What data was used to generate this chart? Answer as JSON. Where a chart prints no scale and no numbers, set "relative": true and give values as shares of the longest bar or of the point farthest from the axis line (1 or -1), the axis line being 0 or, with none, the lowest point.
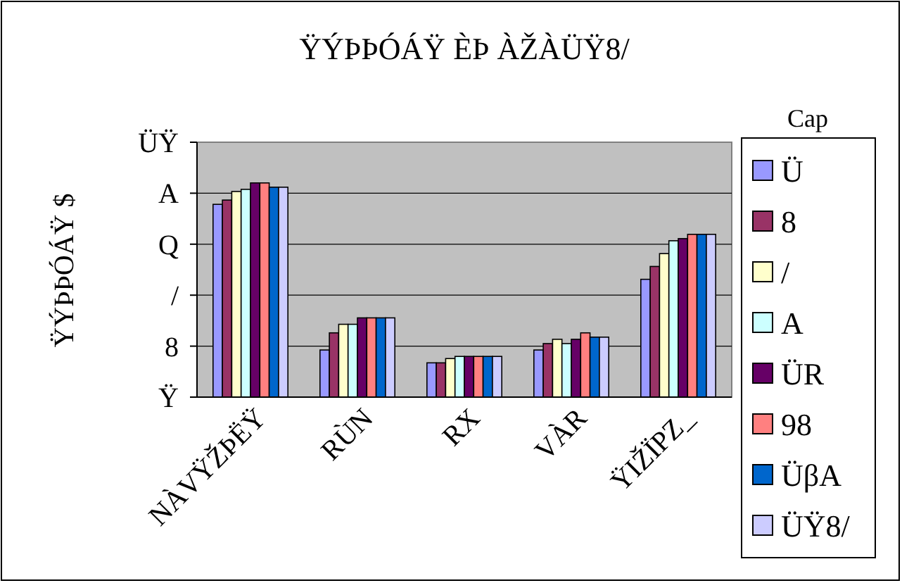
{
  "chart_data": {
    "type": "bar",
    "title": "ŸÝÞÞÓÁŸ ÈÞ ÀŽÀÜŸ8/",
    "ylabel": "ŸÝÞÞÓÁŸ $",
    "legend_title": "Cap",
    "categories": [
      "NÀVŸŽÞËŸ",
      "RÙN",
      "RX",
      "VÀR",
      "ŸIŽÏPZ_"
    ],
    "relative": true,
    "annotations": [
      "Ÿ",
      "8",
      "/",
      "Q",
      "A",
      "ÜŸ"
    ],
    "legend": "right",
    "grid": "y",
    "series": [
      {
        "name": "Ü",
        "color": "#9999ff",
        "values": [
          0.9,
          0.22,
          0.16,
          0.22,
          0.55
        ]
      },
      {
        "name": "8",
        "color": "#993366",
        "values": [
          0.92,
          0.3,
          0.16,
          0.25,
          0.61
        ]
      },
      {
        "name": "/",
        "color": "#ffffcc",
        "values": [
          0.96,
          0.34,
          0.18,
          0.27,
          0.67
        ]
      },
      {
        "name": "A",
        "color": "#ccffff",
        "values": [
          0.97,
          0.34,
          0.19,
          0.25,
          0.73
        ]
      },
      {
        "name": "ÜR",
        "color": "#660066",
        "values": [
          1,
          0.37,
          0.19,
          0.27,
          0.74
        ]
      },
      {
        "name": "98",
        "color": "#ff8080",
        "values": [
          1,
          0.37,
          0.19,
          0.3,
          0.76
        ]
      },
      {
        "name": "ÜβA",
        "color": "#0066cc",
        "values": [
          0.98,
          0.37,
          0.19,
          0.28,
          0.76
        ]
      },
      {
        "name": "ÜŸ8/",
        "color": "#ccccff",
        "values": [
          0.98,
          0.37,
          0.19,
          0.28,
          0.76
        ]
      }
    ]
  }
}
